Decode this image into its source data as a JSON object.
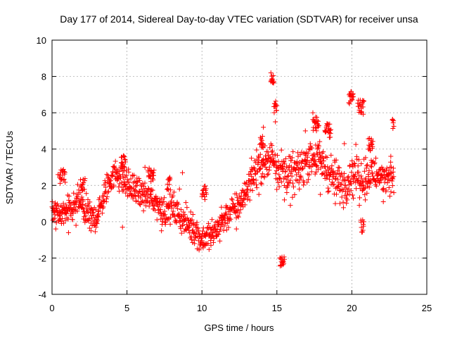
{
  "chart_data": {
    "type": "scatter",
    "title": "Day 177 of 2014, Sidereal Day-to-day VTEC variation (SDTVAR) for receiver unsa",
    "xlabel": "GPS time / hours",
    "ylabel": "SDTVAR / TECUs",
    "xlim": [
      0,
      25
    ],
    "ylim": [
      -4,
      10
    ],
    "xticks": [
      0,
      5,
      10,
      15,
      20,
      25
    ],
    "yticks": [
      -4,
      -2,
      0,
      2,
      4,
      6,
      8,
      10
    ],
    "grid": true,
    "marker": "plus",
    "color": "#ff0000",
    "trend": [
      [
        0.0,
        0.5
      ],
      [
        0.3,
        0.6
      ],
      [
        0.6,
        0.4
      ],
      [
        1.0,
        0.5
      ],
      [
        1.4,
        0.7
      ],
      [
        1.8,
        1.2
      ],
      [
        2.0,
        0.8
      ],
      [
        2.3,
        0.4
      ],
      [
        2.6,
        0.2
      ],
      [
        3.0,
        0.3
      ],
      [
        3.4,
        1.2
      ],
      [
        3.8,
        2.2
      ],
      [
        4.2,
        2.7
      ],
      [
        4.6,
        2.5
      ],
      [
        5.0,
        2.0
      ],
      [
        5.4,
        1.8
      ],
      [
        5.8,
        1.6
      ],
      [
        6.3,
        1.4
      ],
      [
        6.8,
        1.2
      ],
      [
        7.2,
        0.8
      ],
      [
        7.6,
        0.6
      ],
      [
        8.0,
        0.8
      ],
      [
        8.5,
        0.3
      ],
      [
        9.0,
        -0.1
      ],
      [
        9.5,
        -0.4
      ],
      [
        10.0,
        -1.0
      ],
      [
        10.3,
        -0.8
      ],
      [
        10.7,
        -0.7
      ],
      [
        11.2,
        -0.2
      ],
      [
        11.7,
        0.4
      ],
      [
        12.2,
        0.7
      ],
      [
        12.7,
        1.2
      ],
      [
        13.2,
        2.2
      ],
      [
        13.6,
        2.8
      ],
      [
        14.0,
        3.2
      ],
      [
        14.4,
        3.2
      ],
      [
        14.7,
        3.8
      ],
      [
        15.0,
        3.0
      ],
      [
        15.4,
        2.8
      ],
      [
        15.8,
        2.6
      ],
      [
        16.2,
        2.6
      ],
      [
        16.6,
        2.9
      ],
      [
        17.0,
        3.4
      ],
      [
        17.4,
        3.6
      ],
      [
        17.8,
        3.4
      ],
      [
        18.2,
        3.0
      ],
      [
        18.6,
        2.6
      ],
      [
        19.0,
        2.2
      ],
      [
        19.4,
        2.0
      ],
      [
        19.8,
        2.4
      ],
      [
        20.2,
        2.8
      ],
      [
        20.6,
        2.4
      ],
      [
        21.0,
        2.6
      ],
      [
        21.4,
        2.6
      ],
      [
        22.0,
        2.4
      ],
      [
        22.4,
        2.6
      ],
      [
        22.8,
        2.4
      ]
    ],
    "segments": [
      [
        0.5,
        0.9,
        2.5
      ],
      [
        1.9,
        2.2,
        2.0
      ],
      [
        4.6,
        4.9,
        3.3
      ],
      [
        6.4,
        6.8,
        2.6
      ],
      [
        7.7,
        7.9,
        2.1
      ],
      [
        10.0,
        10.3,
        1.6
      ],
      [
        13.9,
        14.1,
        4.4
      ],
      [
        14.6,
        14.8,
        7.7
      ],
      [
        14.8,
        15.0,
        6.4
      ],
      [
        15.2,
        15.5,
        -2.2
      ],
      [
        17.4,
        17.8,
        5.4
      ],
      [
        18.2,
        18.6,
        5.0
      ],
      [
        19.8,
        20.1,
        6.8
      ],
      [
        20.4,
        20.8,
        6.3
      ],
      [
        20.6,
        20.8,
        -0.2
      ],
      [
        21.1,
        21.4,
        4.2
      ],
      [
        22.7,
        22.8,
        5.5
      ]
    ],
    "outliers": [
      [
        0.25,
        -0.4
      ],
      [
        0.4,
        2.6
      ],
      [
        1.1,
        -0.6
      ],
      [
        1.6,
        -0.2
      ],
      [
        2.4,
        1.0
      ],
      [
        2.6,
        -0.5
      ],
      [
        3.1,
        0.6
      ],
      [
        4.7,
        -0.3
      ],
      [
        5.1,
        2.9
      ],
      [
        5.6,
        2.2
      ],
      [
        6.2,
        3.0
      ],
      [
        7.3,
        -0.5
      ],
      [
        8.5,
        1.8
      ],
      [
        8.7,
        2.7
      ],
      [
        9.4,
        0.4
      ],
      [
        9.8,
        -1.5
      ],
      [
        10.6,
        -1.3
      ],
      [
        11.3,
        0.8
      ],
      [
        12.3,
        -0.4
      ],
      [
        12.8,
        1.6
      ],
      [
        13.3,
        3.5
      ],
      [
        13.8,
        1.5
      ],
      [
        14.1,
        5.2
      ],
      [
        14.6,
        8.2
      ],
      [
        14.9,
        5.5
      ],
      [
        15.5,
        1.2
      ],
      [
        15.9,
        0.9
      ],
      [
        16.5,
        1.8
      ],
      [
        16.9,
        5.0
      ],
      [
        17.4,
        6.0
      ],
      [
        17.9,
        1.5
      ],
      [
        18.5,
        4.9
      ],
      [
        18.9,
        1.0
      ],
      [
        19.5,
        4.3
      ],
      [
        20.1,
        1.3
      ],
      [
        20.5,
        0.9
      ],
      [
        20.9,
        1.2
      ],
      [
        21.6,
        3.5
      ],
      [
        22.1,
        1.1
      ],
      [
        22.6,
        3.6
      ],
      [
        22.8,
        1.6
      ]
    ]
  }
}
